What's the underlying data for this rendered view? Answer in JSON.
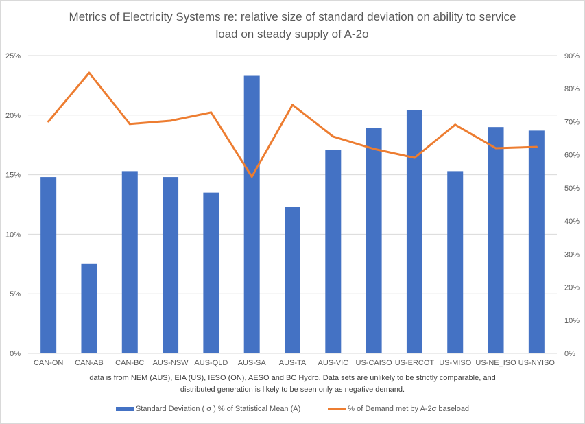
{
  "chart_data": {
    "type": "bar",
    "combo": "bar+line (secondary axis)",
    "title_lines": [
      "Metrics of Electricity Systems re: relative size of standard deviation on ability to service",
      "load on steady supply of A-2σ"
    ],
    "categories": [
      "CAN-ON",
      "CAN-AB",
      "CAN-BC",
      "AUS-NSW",
      "AUS-QLD",
      "AUS-SA",
      "AUS-TA",
      "AUS-VIC",
      "US-CAISO",
      "US-ERCOT",
      "US-MISO",
      "US-NE_ISO",
      "US-NYISO"
    ],
    "series": [
      {
        "name": "Standard Deviation ( σ ) % of Statistical Mean (A)",
        "type": "bar",
        "axis": "left",
        "color": "#4472C4",
        "values": [
          14.8,
          7.5,
          15.3,
          14.8,
          13.5,
          23.3,
          12.3,
          17.1,
          18.9,
          20.4,
          15.3,
          19.0,
          18.7
        ]
      },
      {
        "name": "% of Demand met by A-2σ baseload",
        "type": "line",
        "axis": "right",
        "color": "#ED7D31",
        "values": [
          70.1,
          84.8,
          69.3,
          70.3,
          72.8,
          53.4,
          75.1,
          65.5,
          61.8,
          59.1,
          69.1,
          62.0,
          62.4
        ]
      }
    ],
    "left_axis": {
      "ylim": [
        0,
        25
      ],
      "ticks": [
        0,
        5,
        10,
        15,
        20,
        25
      ],
      "tick_labels": [
        "0%",
        "5%",
        "10%",
        "15%",
        "20%",
        "25%"
      ]
    },
    "right_axis": {
      "ylim": [
        0,
        90
      ],
      "ticks": [
        0,
        10,
        20,
        30,
        40,
        50,
        60,
        70,
        80,
        90
      ],
      "tick_labels": [
        "0%",
        "10%",
        "20%",
        "30%",
        "40%",
        "50%",
        "60%",
        "70%",
        "80%",
        "90%"
      ]
    },
    "xlabel": "",
    "grid": true,
    "legend_position": "bottom",
    "footnote_lines": [
      "data is from NEM (AUS),  EIA (US),  IESO (ON),  AESO and BC Hydro. Data sets are unlikely to be strictly comparable, and",
      "distributed generation is likely to be seen only as negative demand."
    ]
  }
}
